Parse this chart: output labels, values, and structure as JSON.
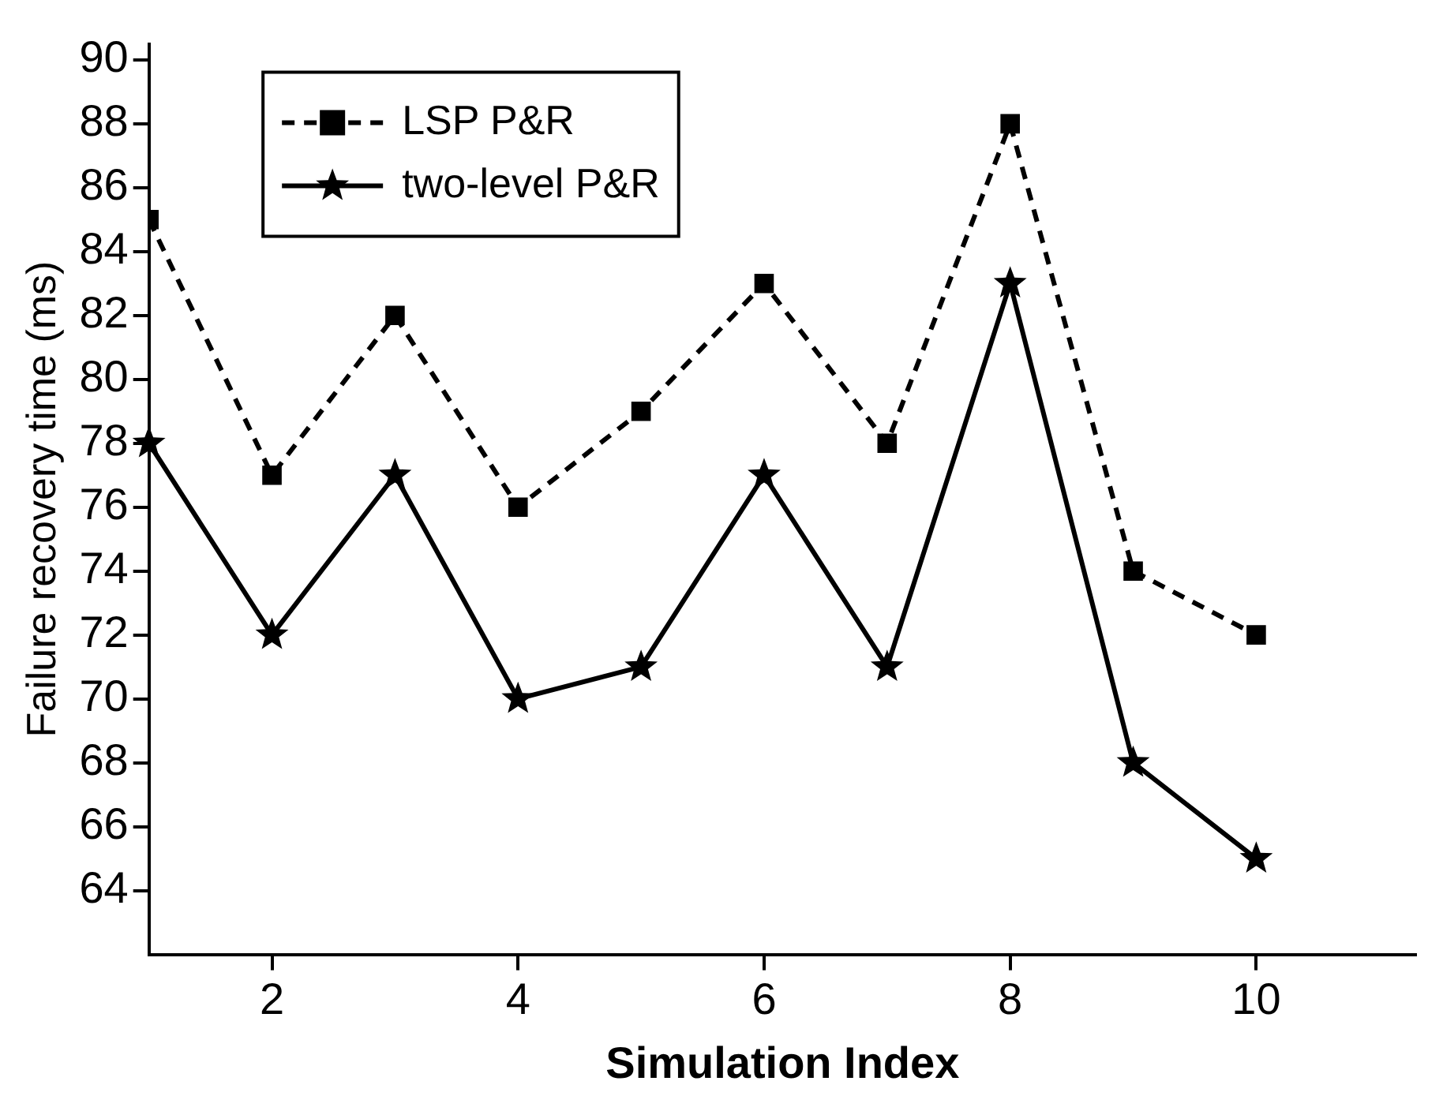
{
  "chart_data": {
    "type": "line",
    "xlabel": "Simulation Index",
    "ylabel": "Failure recovery time (ms)",
    "x": [
      1,
      2,
      3,
      4,
      5,
      6,
      7,
      8,
      9,
      10
    ],
    "series": [
      {
        "name": "LSP P&R",
        "color": "#000000",
        "marker": "square",
        "line_style": "dashed",
        "values": [
          85,
          77,
          82,
          76,
          79,
          83,
          78,
          88,
          74,
          72
        ]
      },
      {
        "name": "two-level P&R",
        "color": "#000000",
        "marker": "star",
        "line_style": "solid",
        "values": [
          78,
          72,
          77,
          70,
          71,
          77,
          71,
          83,
          68,
          65
        ]
      }
    ],
    "xlim": [
      1,
      11.3
    ],
    "xticks": [
      2,
      4,
      6,
      8,
      10
    ],
    "ylim": [
      62,
      90.5
    ],
    "yticks": [
      64,
      66,
      68,
      70,
      72,
      74,
      76,
      78,
      80,
      82,
      84,
      86,
      88,
      90
    ],
    "grid": false,
    "legend": "top left"
  }
}
